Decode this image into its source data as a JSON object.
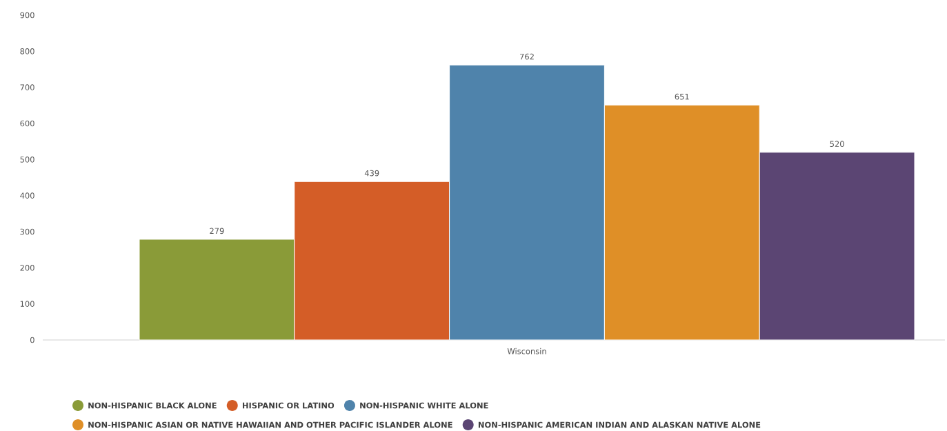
{
  "chart_data": {
    "type": "bar",
    "categories": [
      "Wisconsin"
    ],
    "series": [
      {
        "name": "NON-HISPANIC BLACK ALONE",
        "color": "#8a9b38",
        "values": [
          279
        ]
      },
      {
        "name": "HISPANIC OR LATINO",
        "color": "#d45d27",
        "values": [
          439
        ]
      },
      {
        "name": "NON-HISPANIC WHITE ALONE",
        "color": "#4f83ab",
        "values": [
          762
        ]
      },
      {
        "name": "NON-HISPANIC ASIAN OR NATIVE HAWAIIAN AND OTHER PACIFIC ISLANDER ALONE",
        "color": "#df8f27",
        "values": [
          651
        ]
      },
      {
        "name": "NON-HISPANIC AMERICAN INDIAN AND ALASKAN NATIVE ALONE",
        "color": "#5b4573",
        "values": [
          520
        ]
      }
    ],
    "ylim": [
      0,
      900
    ],
    "yticks": [
      0,
      100,
      200,
      300,
      400,
      500,
      600,
      700,
      800,
      900
    ],
    "data_labels": true,
    "grid": false,
    "legend": "bottom"
  }
}
